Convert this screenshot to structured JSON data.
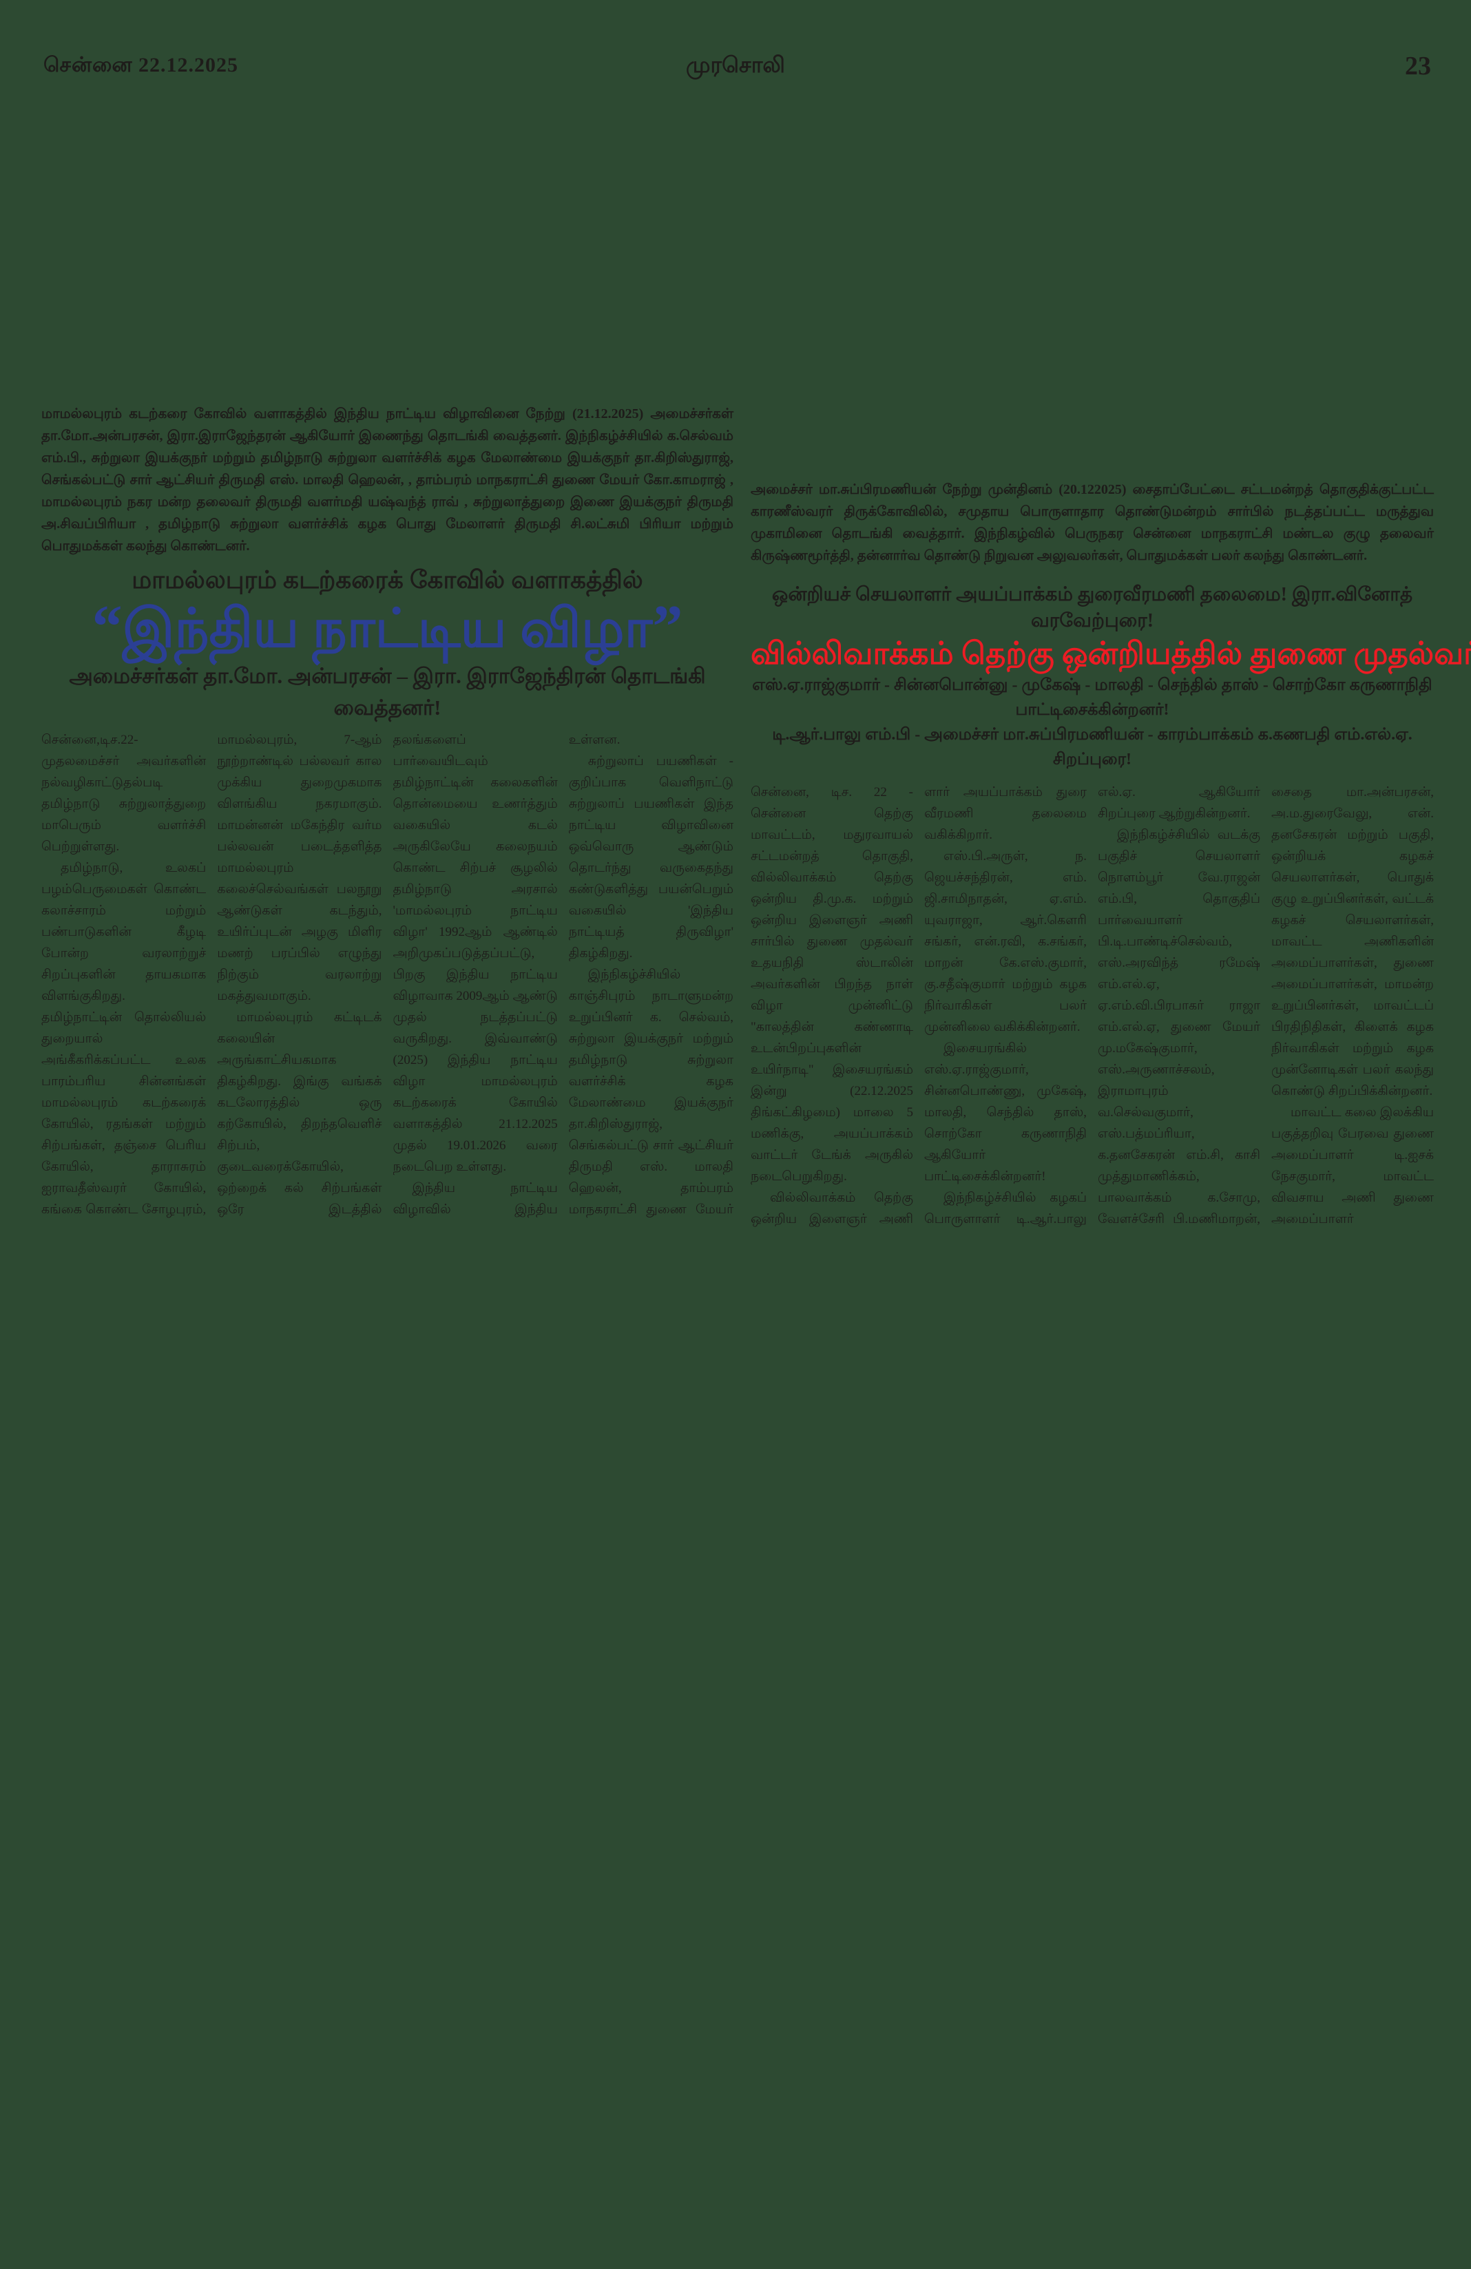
{
  "page": {
    "background_color": "#2d4a32",
    "ink_color": "#1e1c1a"
  },
  "header": {
    "date": "சென்னை 22.12.2025",
    "masthead": "முரசொலி",
    "page_number": "23"
  },
  "left_article": {
    "photo_caption": "மாமல்லபுரம் கடற்கரை கோவில் வளாகத்தில் இந்திய நாட்டிய விழாவினை நேற்று (21.12.2025) அமைச்சர்கள் தா.மோ.அன்பரசன், இரா.இராஜேந்தரன் ஆகியோர் இணைந்து தொடங்கி வைத்தனர். இந்நிகழ்ச்சியில் க.செல்வம் எம்.பி., சுற்றுலா இயக்குநர் மற்றும் தமிழ்நாடு சுற்றுலா வளர்ச்சிக் கழக மேலாண்மை இயக்குநர் தா.கிறிஸ்துராஜ், செங்கல்பட்டு சார் ஆட்சியர் திருமதி எஸ். மாலதி ஹெலன், , தாம்பரம் மாநகராட்சி துணை மேயர் கோ.காமராஜ் , மாமல்லபுரம் நகர மன்ற தலைவர் திருமதி வளர்மதி யஷ்வந்த் ராவ் , சுற்றுலாத்துறை இணை இயக்குநர் திருமதி அ.சிவப்பிரியா , தமிழ்நாடு சுற்றுலா வளர்ச்சிக் கழக பொது மேலாளர் திருமதி சி.லட்சுமி பிரியா மற்றும் பொதுமக்கள் கலந்து கொண்டனர்.",
    "kicker": "மாமல்லபுரம் கடற்கரைக் கோவில் வளாகத்தில்",
    "headline_quote_open": "“",
    "headline_text": "இந்திய நாட்டிய விழா",
    "headline_quote_close": "”",
    "headline_color": "#2b3f94",
    "subhead": "அமைச்சர்கள் தா.மோ. அன்பரசன் – இரா. இராஜேந்திரன் தொடங்கி வைத்தனர்!",
    "columns": [
      [
        "சென்னை,டிச.22- முதலமைச்சர் அவர்களின் நல்வழிகாட்டுதல்படி தமிழ்நாடு சுற்றுலாத்துறை மாபெரும் வளர்ச்சி பெற்றுள்ளது.",
        "தமிழ்நாடு, உலகப் பழம்பெருமைகள் கொண்ட கலாச்சாரம் மற்றும் பண்பாடுகளின் கீழடி போன்ற வரலாற்றுச் சிறப்புகளின் தாயகமாக விளங்குகிறது. தமிழ்நாட்டின் தொல்லியல் துறையால் அங்கீகரிக்கப்பட்ட உலக பாரம்பரிய சின்னங்கள் மாமல்லபுரம் கடற்கரைக் கோயில், ரதங்கள் மற்றும் சிற்பங்கள், தஞ்சை பெரிய கோயில், தாராசுரம் ஐராவதீஸ்வரர் கோயில், கங்கை கொண்ட சோழபுரம், நீலகிரி பாரம்பரிய மலை ரயில், மற்றும் மேற்குத் தொடர்ச்சி மலை, செஞ்சி கோட்டை ஆகியவற்றை 'யுனெஸ்கோ' அமைப்பு உலக பாரம்பரிய நினைவுச் சின்னங்களாக அறிவித்துள்ளது.",
        "சர்வதேச சுற்றுலாத் தலமாக வளர்ச்சிப் பெற்றுள்ள"
      ],
      [
        "மாமல்லபுரம், 7-ஆம் நூற்றாண்டில் பல்லவர் கால முக்கிய துறைமுகமாக விளங்கிய நகரமாகும். மாமன்னன் மகேந்திர வர்ம பல்லவன் படைத்தளித்த மாமல்லபுரம் கலைச்செல்வங்கள் பலநூறு ஆண்டுகள் கடந்தும், உயிர்ப்புடன் அழகு மிளிர மணற் பரப்பில் எழுந்து நிற்கும் வரலாற்று மகத்துவமாகும்.",
        "மாமல்லபுரம் கட்டிடக் கலையின் அருங்காட்சியகமாக திகழ்கிறது. இங்கு வங்கக் கடலோரத்தில் ஒரு கற்கோயில், திறந்தவெளிச் சிற்பம், குடைவரைக்கோயில், ஒற்றைக் கல் சிற்பங்கள் ஒரே இடத்தில் காணக்கிடைக்கும் அற்புதமாகும். இதன் காரணமாக இந்தியாவில் அதிக அளவில் வெளிநாட்டுப் பயணிகள் வருகை தரும் இடமாக மாமல்லபுரம் விளங்கிவருகிறது.",
        "சுற்றுலாப் பயணிகளின் வருகையினை அதிகரிக்கவும், தமிழ்நாட்டில் நீண்ட நாட்கள் தங்கும் சுற்றுலாப்"
      ],
      [
        "தலங்களைப் பார்வையிடவும் தமிழ்நாட்டின் கலைகளின் தொன்மையை உணர்த்தும் வகையில் கடல் அருகிலேயே கலைநயம் கொண்ட சிற்பச் சூழலில் தமிழ்நாடு அரசால் 'மாமல்லபுரம் நாட்டிய விழா' 1992ஆம் ஆண்டில் அறிமுகப்படுத்தப்பட்டு, பிறகு இந்திய நாட்டிய விழாவாக 2009ஆம் ஆண்டு முதல் நடத்தப்பட்டு வருகிறது. இவ்வாண்டு (2025) இந்திய நாட்டிய விழா மாமல்லபுரம் கடற்கரைக் கோயில் வளாகத்தில் 21.12.2025 முதல் 19.01.2026 வரை நடைபெற உள்ளது.",
        "இந்திய நாட்டிய விழாவில் இந்திய நாட்டியங்களில் சிறப்பான பரதநாட்டியம், மோகினி ஆட்டம், கூடியாட்டம், ஒடிசி, கதக்களி, குச்சிப்புடி மற்றும் நாட்டுப்புறக் கலைகளான கரகம், காவடி, தப்பாட்டம், ஒயிலாட்டம், போன்ற 150க்கும் மேற்பட்ட குழுக்களின் கண்கவர் கலை நிகழ்ச்சிகள் நடத்தப்பட"
      ],
      [
        "உள்ளன.",
        "சுற்றுலாப் பயணிகள் - குறிப்பாக வெளிநாட்டு சுற்றுலாப் பயணிகள் இந்த நாட்டிய விழாவினை ஒவ்வொரு ஆண்டும் தொடர்ந்து வருகைதந்து கண்டுகளித்து பயன்பெறும் வகையில் 'இந்திய நாட்டியத் திருவிழா' திகழ்கிறது.",
        "இந்நிகழ்ச்சியில் காஞ்சிபுரம் நாடாளுமன்ற உறுப்பினர் க. செல்வம், சுற்றுலா இயக்குநர் மற்றும் தமிழ்நாடு சுற்றுலா வளர்ச்சிக் கழக மேலாண்மை இயக்குநர் தா.கிறிஸ்துராஜ், செங்கல்பட்டு சார் ஆட்சியர் திருமதி எஸ். மாலதி ஹெலன், தாம்பரம் மாநகராட்சி துணை மேயர் கோ.காமராஜ், மாமல்லபுரம் நகர மன்ற தலைவர் திருமதி வளர்மதி யஷ்வந்த் ராவ், சுற்றுலாத்துறை இணை இயக்குநர் திருமதி அ.சிவப்பிரியா, தமிழ்நாடு சுற்றுலா வளர்ச்சிக் கழக பொது மேலாளர் திருமதி சி.லட்சுமி பிரியா, மற்றும் பொதுமக்கள் கலந்து கொண்டனர்."
      ]
    ]
  },
  "right_article": {
    "photo_caption": "அமைச்சர் மா.சுப்பிரமணியன் நேற்று முன்தினம் (20.122025) சைதாப்பேட்டை சட்டமன்றத் தொகுதிக்குட்பட்ட காரணீஸ்வரர் திருக்கோவிலில், சமுதாய பொருளாதார தொண்டுமன்றம் சார்பில் நடத்தப்பட்ட மருத்துவ முகாமினை தொடங்கி வைத்தார். இந்நிகழ்வில் பெருநகர சென்னை மாநகராட்சி மண்டல குழு தலைவர் கிருஷ்ணமூர்த்தி, தன்னார்வ தொண்டு நிறுவன அலுவலர்கள், பொதுமக்கள் பலர் கலந்து கொண்டனர்.",
    "kicker": "ஒன்றியச் செயலாளர் அயப்பாக்கம் துரைவீரமணி தலைமை! இரா.வினோத் வரவேற்புரை!",
    "headline_main": "வில்லிவாக்கம் தெற்கு ஒன்றியத்தில் துணை முதல்வர் பிறந்தநாள் இசையரங்கம்!",
    "headline_main_color": "#ed1c24",
    "subhead1": "எஸ்.ஏ.ராஜ்குமார் - சின்னபொன்னு - முகேஷ் - மாலதி - செந்தில் தாஸ் - சொற்கோ கருணாநிதி பாட்டிசைக்கின்றனர்!",
    "subhead2": "டி.ஆர்.பாலு எம்.பி - அமைச்சர் மா.சுப்பிரமணியன் - காரம்பாக்கம் க.கணபதி எம்.எல்.ஏ. சிறப்புரை!",
    "columns": [
      [
        "சென்னை, டிச. 22 - சென்னை தெற்கு மாவட்டம், மதுரவாயல் சட்டமன்றத் தொகுதி, வில்லிவாக்கம் தெற்கு ஒன்றிய தி.மு.க. மற்றும் ஒன்றிய இளைஞர் அணி சார்பில் துணை முதல்வர் உதயநிதி ஸ்டாலின் அவர்களின் பிறந்த நாள் விழா முன்னிட்டு \"காலத்தின் கண்ணாடி உடன்பிறப்புகளின் உயிர்நாடி\" இசையரங்கம் இன்று (22.12.2025 திங்கட்கிழமை) மாலை 5 மணிக்கு, அயப்பாக்கம் வாட்டர் டேங்க் அருகில் நடைபெறுகிறது.",
        "வில்லிவாக்கம் தெற்கு ஒன்றிய இளைஞர் அணி அமைப்பாளர் இரா. வினோத் வரவேற்புரை ஆற்றுகிறார்.",
        "வில்லிவாக்கம் தெற்கு ஒன்றியக் கழகச் செயலா"
      ],
      [
        "ளார் அயப்பாக்கம் துரை வீரமணி தலைமை வகிக்கிறார்.",
        "எஸ்.பி.அருள், ந. ஜெயச்சந்திரன், எம். ஜி.சாமிநாதன், ஏ.எம். யுவராஜா, ஆர்.கௌரி சங்கர், என்.ரவி, க.சங்கர், மாறன் கே.எஸ்.குமார், கு.சதீஷ்குமார் மற்றும் கழக நிர்வாகிகள் பலர் முன்னிலை வகிக்கின்றனர்.",
        "இசையரங்கில் எஸ்.ஏ.ராஜ்குமார், சின்னபொண்ணு, முகேஷ், மாலதி, செந்தில் தாஸ், சொற்கோ கருணாநிதி ஆகியோர் பாட்டிசைக்கின்றனர்!",
        "இந்நிகழ்ச்சியில் கழகப் பொருளாளர் டி.ஆர்.பாலு எம்.பி, மாவட்டக் கழகச் செயலாளர், அமைச்சர் மா.சுப்பிரமணியன், காரம்பாக்கம் க.கணபதி எம்."
      ],
      [
        "எல்.ஏ. ஆகியோர் சிறப்புரை ஆற்றுகின்றனர்.",
        "இந்நிகழ்ச்சியில் வடக்கு பகுதிச் செயலாளர் நொளம்பூர் வே.ராஜன் எம்.பி, தொகுதிப் பார்வையாளர் பி.டி.பாண்டிச்செல்வம், எஸ்.அரவிந்த் ரமேஷ் எம்.எல்.ஏ, ஏ.எம்.வி.பிரபாகர் ராஜா எம்.எல்.ஏ, துணை மேயர் மு.மகேஷ்குமார், எஸ்.அருணாச்சலம், இராமாபுரம் வ.செல்வகுமார், எஸ்.பத்மப்ரியா, க.தனசேகரன் எம்.சி, காசி முத்துமாணிக்கம், பாலவாக்கம் க.சோமு, வேளச்சேரி பி.மணிமாறன், எஸ்.குணசேகரன், பாலவாக்கம் த.விஸ்வநாதன், பாலவாக்கம் மு.மனோகரன், பா.வாசுகி பாண்டியன், எஸ்.பால்சகன்,"
      ],
      [
        "சைதை மா.அன்பரசன், அ.ம.துரைவேலு, என். தனசேகரன் மற்றும் பகுதி, ஒன்றியக் கழகச் செயலாளர்கள், பொதுக் குழு உறுப்பினர்கள், வட்டக் கழகச் செயலாளர்கள், மாவட்ட அணிகளின் அமைப்பாளர்கள், துணை அமைப்பாளர்கள், மாமன்ற உறுப்பினர்கள், மாவட்டப் பிரதிநிதிகள், கிளைக் கழக நிர்வாகிகள் மற்றும் கழக முன்னோடிகள் பலர் கலந்து கொண்டு சிறப்பிக்கின்றனர்.",
        "மாவட்ட கலை இலக்கிய பகுத்தறிவு பேரவை துணை அமைப்பாளர் டி.ஐசக் நேசகுமார், மாவட்ட விவசாய அணி துணை அமைப்பாளர் ஏ.சுந்தரமூர்த்தி ஆகியோர் நன்றி உரை ஆற்றுகின்றனர்."
      ]
    ]
  }
}
